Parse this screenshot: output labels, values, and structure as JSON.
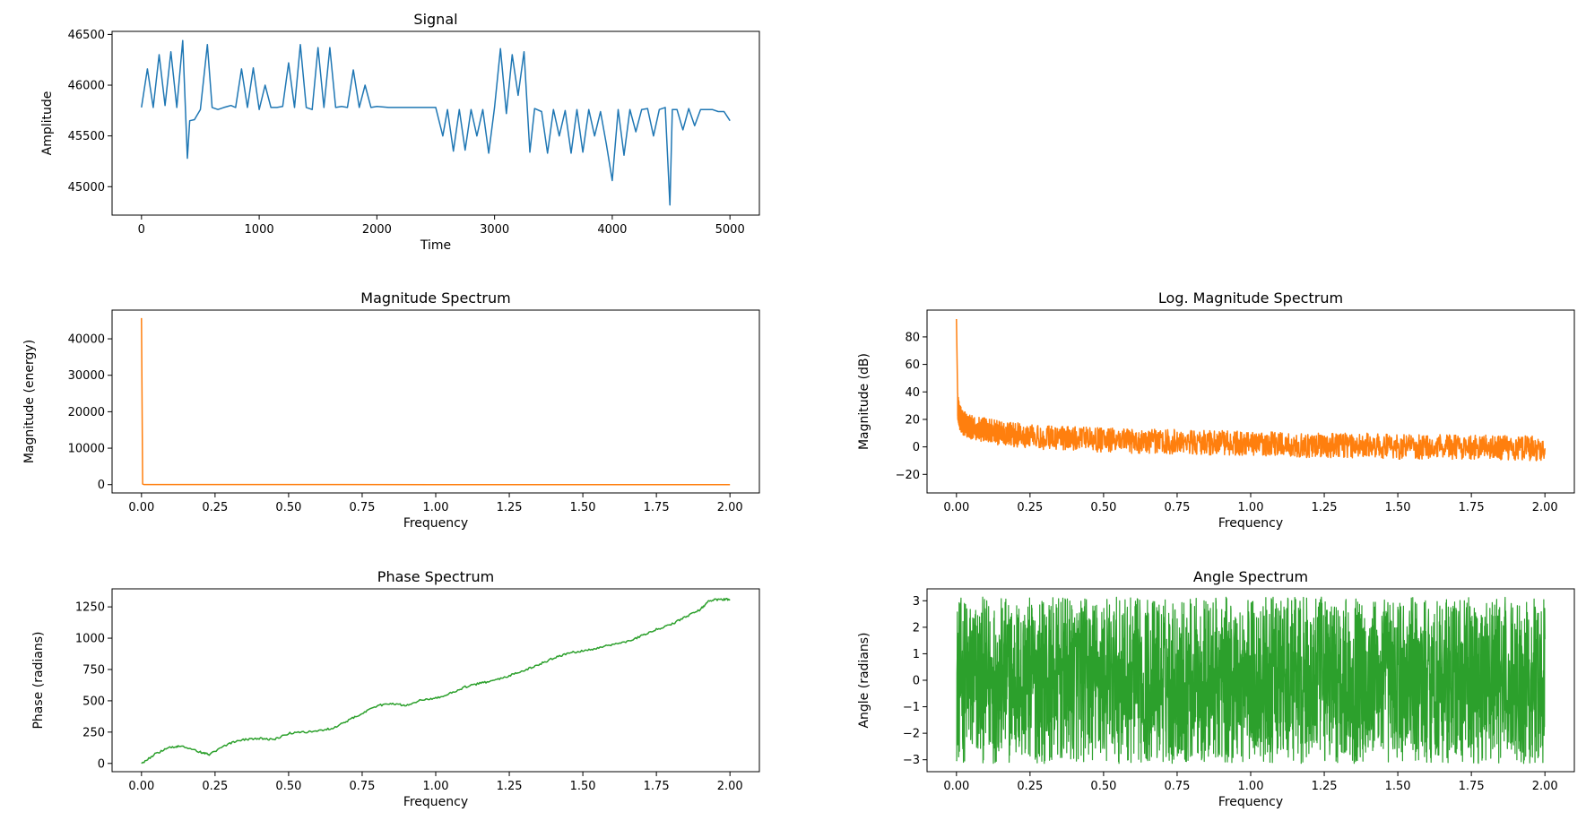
{
  "chart_data": [
    {
      "id": "signal",
      "type": "line",
      "title": "Signal",
      "xlabel": "Time",
      "ylabel": "Amplitude",
      "xlim": [
        -250,
        5250
      ],
      "ylim": [
        44720,
        46530
      ],
      "xticks": [
        0,
        1000,
        2000,
        3000,
        4000,
        5000
      ],
      "xticklabels": [
        "0",
        "1000",
        "2000",
        "3000",
        "4000",
        "5000"
      ],
      "yticks": [
        45000,
        45500,
        46000,
        46500
      ],
      "yticklabels": [
        "45000",
        "45500",
        "46000",
        "46500"
      ],
      "color": "#1f77b4",
      "series": [
        {
          "name": "signal",
          "x": [
            0,
            50,
            100,
            150,
            200,
            250,
            300,
            350,
            390,
            410,
            450,
            500,
            560,
            600,
            650,
            700,
            760,
            800,
            850,
            900,
            950,
            1000,
            1050,
            1100,
            1150,
            1200,
            1250,
            1300,
            1350,
            1400,
            1450,
            1500,
            1550,
            1600,
            1650,
            1700,
            1750,
            1800,
            1850,
            1900,
            1950,
            2000,
            2100,
            2200,
            2300,
            2400,
            2500,
            2560,
            2600,
            2650,
            2700,
            2750,
            2800,
            2850,
            2900,
            2950,
            3000,
            3050,
            3100,
            3150,
            3200,
            3250,
            3300,
            3340,
            3400,
            3450,
            3500,
            3550,
            3600,
            3650,
            3700,
            3750,
            3800,
            3850,
            3900,
            3950,
            4000,
            4050,
            4100,
            4150,
            4200,
            4250,
            4300,
            4350,
            4400,
            4450,
            4490,
            4510,
            4550,
            4600,
            4650,
            4700,
            4750,
            4800,
            4850,
            4900,
            4950,
            5000
          ],
          "y": [
            45780,
            46160,
            45780,
            46300,
            45800,
            46330,
            45780,
            46440,
            45280,
            45650,
            45660,
            45760,
            46400,
            45780,
            45760,
            45780,
            45800,
            45780,
            46160,
            45780,
            46170,
            45760,
            46000,
            45780,
            45780,
            45790,
            46220,
            45780,
            46400,
            45780,
            45760,
            46370,
            45780,
            46370,
            45780,
            45790,
            45780,
            46150,
            45780,
            46000,
            45780,
            45790,
            45780,
            45780,
            45780,
            45780,
            45780,
            45500,
            45760,
            45350,
            45760,
            45360,
            45760,
            45500,
            45760,
            45330,
            45780,
            46360,
            45720,
            46300,
            45900,
            46330,
            45340,
            45770,
            45740,
            45330,
            45760,
            45500,
            45750,
            45330,
            45760,
            45340,
            45760,
            45500,
            45740,
            45420,
            45060,
            45760,
            45310,
            45760,
            45540,
            45760,
            45770,
            45500,
            45760,
            45780,
            44820,
            45760,
            45760,
            45560,
            45770,
            45600,
            45760,
            45760,
            45760,
            45740,
            45740,
            45650
          ]
        }
      ]
    },
    {
      "id": "magnitude",
      "type": "line",
      "title": "Magnitude Spectrum",
      "xlabel": "Frequency",
      "ylabel": "Magnitude (energy)",
      "xlim": [
        -0.1,
        2.1
      ],
      "ylim": [
        -2280,
        47880
      ],
      "xticks": [
        0,
        0.25,
        0.5,
        0.75,
        1.0,
        1.25,
        1.5,
        1.75,
        2.0
      ],
      "xticklabels": [
        "0.00",
        "0.25",
        "0.50",
        "0.75",
        "1.00",
        "1.25",
        "1.50",
        "1.75",
        "2.00"
      ],
      "yticks": [
        0,
        10000,
        20000,
        30000,
        40000
      ],
      "yticklabels": [
        "0",
        "10000",
        "20000",
        "30000",
        "40000"
      ],
      "color": "#ff7f0e",
      "series": [
        {
          "name": "magnitude",
          "x": [
            0,
            0.004,
            0.008,
            0.5,
            1.0,
            1.5,
            2.0
          ],
          "y": [
            45700,
            150,
            40,
            20,
            15,
            12,
            10
          ]
        }
      ]
    },
    {
      "id": "logmag",
      "type": "line",
      "title": "Log. Magnitude Spectrum",
      "xlabel": "Frequency",
      "ylabel": "Magnitude (dB)",
      "xlim": [
        -0.1,
        2.1
      ],
      "ylim": [
        -33.5,
        99.5
      ],
      "xticks": [
        0,
        0.25,
        0.5,
        0.75,
        1.0,
        1.25,
        1.5,
        1.75,
        2.0
      ],
      "xticklabels": [
        "0.00",
        "0.25",
        "0.50",
        "0.75",
        "1.00",
        "1.25",
        "1.50",
        "1.75",
        "2.00"
      ],
      "yticks": [
        -20,
        0,
        20,
        40,
        60,
        80
      ],
      "yticklabels": [
        "−20",
        "0",
        "20",
        "40",
        "60",
        "80"
      ],
      "color": "#ff7f0e",
      "series": [
        {
          "name": "log magnitude",
          "x": [
            0,
            0.004,
            0.01,
            0.02,
            0.05,
            0.1,
            0.15,
            0.2,
            0.3,
            0.4,
            0.5,
            0.6,
            0.7,
            0.8,
            0.9,
            1.0,
            1.1,
            1.2,
            1.3,
            1.4,
            1.5,
            1.6,
            1.7,
            1.8,
            1.9,
            2.0
          ],
          "y": [
            93,
            30,
            22,
            18,
            14,
            12,
            10,
            9,
            7,
            6,
            5,
            4,
            4,
            3,
            3,
            2,
            2,
            1,
            1,
            1,
            0,
            0,
            0,
            0,
            -1,
            -1
          ],
          "noise_amplitude": 9
        }
      ]
    },
    {
      "id": "phase",
      "type": "line",
      "title": "Phase Spectrum",
      "xlabel": "Frequency",
      "ylabel": "Phase (radians)",
      "xlim": [
        -0.1,
        2.1
      ],
      "ylim": [
        -66,
        1394
      ],
      "xticks": [
        0,
        0.25,
        0.5,
        0.75,
        1.0,
        1.25,
        1.5,
        1.75,
        2.0
      ],
      "xticklabels": [
        "0.00",
        "0.25",
        "0.50",
        "0.75",
        "1.00",
        "1.25",
        "1.50",
        "1.75",
        "2.00"
      ],
      "yticks": [
        0,
        250,
        500,
        750,
        1000,
        1250
      ],
      "yticklabels": [
        "0",
        "250",
        "500",
        "750",
        "1000",
        "1250"
      ],
      "color": "#2ca02c",
      "series": [
        {
          "name": "phase",
          "x": [
            0,
            0.05,
            0.1,
            0.13,
            0.2,
            0.23,
            0.3,
            0.35,
            0.4,
            0.45,
            0.5,
            0.55,
            0.6,
            0.65,
            0.7,
            0.75,
            0.8,
            0.85,
            0.9,
            0.95,
            1.0,
            1.05,
            1.1,
            1.15,
            1.2,
            1.25,
            1.3,
            1.35,
            1.4,
            1.45,
            1.5,
            1.55,
            1.6,
            1.65,
            1.7,
            1.75,
            1.8,
            1.85,
            1.9,
            1.93,
            1.97,
            2.0
          ],
          "y": [
            0,
            80,
            130,
            140,
            90,
            70,
            160,
            190,
            200,
            190,
            240,
            250,
            260,
            280,
            340,
            400,
            460,
            480,
            460,
            510,
            520,
            560,
            610,
            640,
            660,
            700,
            740,
            790,
            840,
            880,
            900,
            920,
            950,
            970,
            1020,
            1070,
            1110,
            1170,
            1230,
            1300,
            1310,
            1310
          ],
          "noise_amplitude": 8
        }
      ]
    },
    {
      "id": "angle",
      "type": "line",
      "title": "Angle Spectrum",
      "xlabel": "Frequency",
      "ylabel": "Angle (radians)",
      "xlim": [
        -0.1,
        2.1
      ],
      "ylim": [
        -3.45,
        3.45
      ],
      "xticks": [
        0,
        0.25,
        0.5,
        0.75,
        1.0,
        1.25,
        1.5,
        1.75,
        2.0
      ],
      "xticklabels": [
        "0.00",
        "0.25",
        "0.50",
        "0.75",
        "1.00",
        "1.25",
        "1.50",
        "1.75",
        "2.00"
      ],
      "yticks": [
        -3,
        -2,
        -1,
        0,
        1,
        2,
        3
      ],
      "yticklabels": [
        "−3",
        "−2",
        "−1",
        "0",
        "1",
        "2",
        "3"
      ],
      "color": "#2ca02c",
      "series": [
        {
          "name": "angle",
          "x": [
            0,
            2
          ],
          "y": [
            -3.14,
            3.14
          ],
          "note": "values spread uniformly between -3.14 and 3.14 across the full frequency range"
        }
      ]
    }
  ]
}
